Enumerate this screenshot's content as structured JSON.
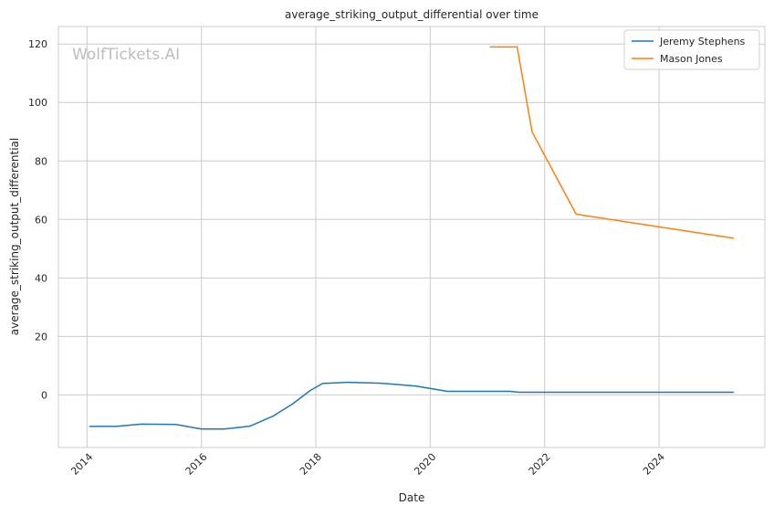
{
  "chart_data": {
    "type": "line",
    "title": "average_striking_output_differential over time",
    "xlabel": "Date",
    "ylabel": "average_striking_output_differential",
    "watermark": "WolfTickets.AI",
    "xlim": [
      2013.5,
      2025.85
    ],
    "ylim": [
      -18,
      126
    ],
    "x_ticks": [
      2014,
      2016,
      2018,
      2020,
      2022,
      2024
    ],
    "y_ticks": [
      0,
      20,
      40,
      60,
      80,
      100,
      120
    ],
    "grid": true,
    "legend_position": "top-right",
    "series": [
      {
        "name": "Jeremy Stephens",
        "color": "#1f77b4",
        "points": [
          [
            2014.05,
            -10.8
          ],
          [
            2014.5,
            -10.8
          ],
          [
            2014.95,
            -10.0
          ],
          [
            2015.55,
            -10.1
          ],
          [
            2016.0,
            -11.7
          ],
          [
            2016.4,
            -11.7
          ],
          [
            2016.85,
            -10.7
          ],
          [
            2017.25,
            -7.3
          ],
          [
            2017.6,
            -3.0
          ],
          [
            2017.9,
            1.5
          ],
          [
            2018.12,
            3.9
          ],
          [
            2018.55,
            4.3
          ],
          [
            2019.15,
            4.0
          ],
          [
            2019.75,
            3.0
          ],
          [
            2020.3,
            1.2
          ],
          [
            2021.4,
            1.2
          ],
          [
            2021.55,
            0.9
          ],
          [
            2022.5,
            0.9
          ],
          [
            2025.3,
            0.9
          ]
        ]
      },
      {
        "name": "Mason Jones",
        "color": "#ff7f0e",
        "points": [
          [
            2021.05,
            119.0
          ],
          [
            2021.52,
            119.0
          ],
          [
            2021.78,
            90.0
          ],
          [
            2022.55,
            61.8
          ],
          [
            2025.3,
            53.6
          ]
        ]
      }
    ]
  }
}
